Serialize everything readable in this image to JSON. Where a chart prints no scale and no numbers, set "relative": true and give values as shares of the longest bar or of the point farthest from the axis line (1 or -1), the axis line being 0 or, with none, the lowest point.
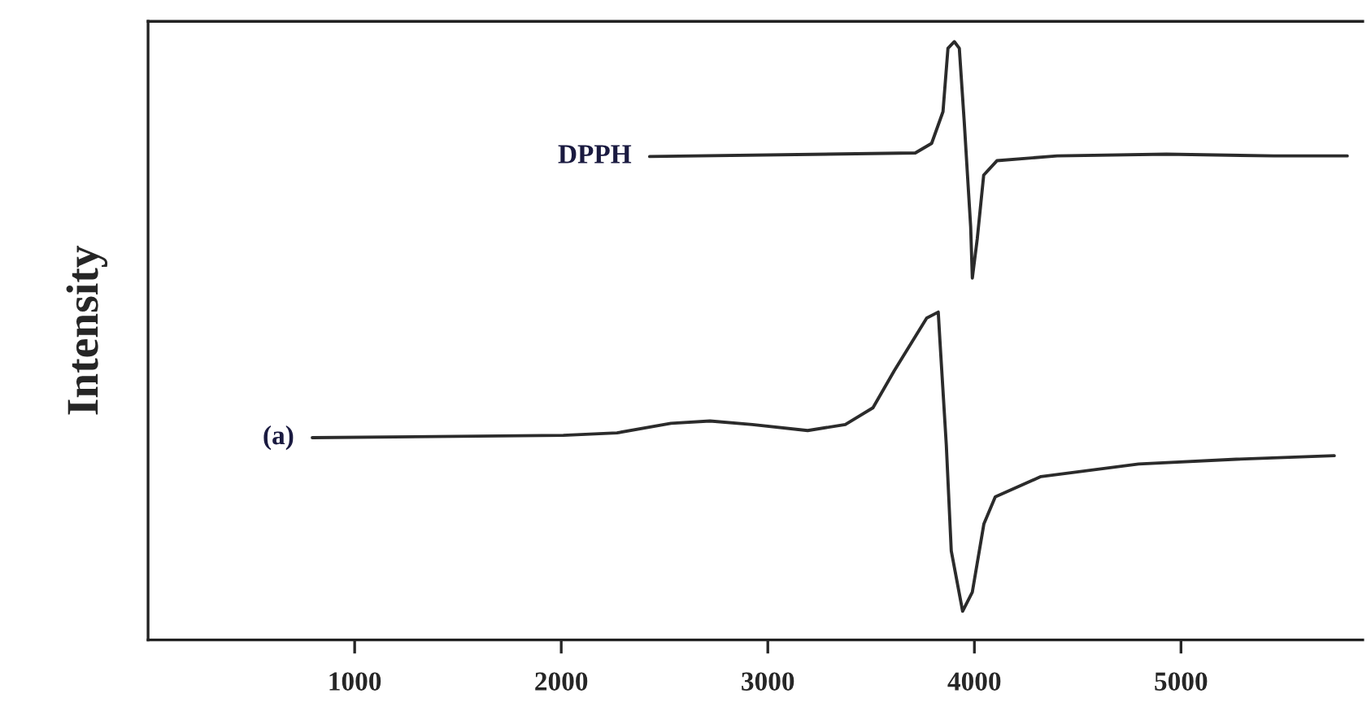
{
  "chart_data": {
    "type": "line",
    "ylabel": "Intensity",
    "relative": true,
    "xlim": [
      0,
      5880
    ],
    "xticks": [
      1000,
      2000,
      3000,
      4000,
      5000
    ],
    "grid": false,
    "legend": false,
    "tick_labels": "x",
    "series": [
      {
        "name": "DPPH",
        "color": "#2b2b2b",
        "x": [
          2428,
          3714,
          3793,
          3848,
          3872,
          3903,
          3927,
          3951,
          3982,
          3990,
          4014,
          4045,
          4109,
          4401,
          4929,
          5450,
          5805
        ],
        "values": [
          0.808,
          0.814,
          0.83,
          0.883,
          0.989,
          1.0,
          0.989,
          0.865,
          0.69,
          0.605,
          0.671,
          0.777,
          0.801,
          0.809,
          0.812,
          0.809,
          0.809
        ]
      },
      {
        "name": "(a)",
        "color": "#2b2b2b",
        "x": [
          795,
          2010,
          2270,
          2531,
          2720,
          2925,
          3193,
          3375,
          3509,
          3612,
          3769,
          3825,
          3833,
          3864,
          3888,
          3943,
          3990,
          4046,
          4101,
          4322,
          4795,
          5268,
          5742
        ],
        "values": [
          0.338,
          0.342,
          0.346,
          0.362,
          0.366,
          0.36,
          0.35,
          0.36,
          0.388,
          0.45,
          0.538,
          0.548,
          0.501,
          0.326,
          0.149,
          0.048,
          0.08,
          0.194,
          0.239,
          0.273,
          0.294,
          0.302,
          0.308
        ]
      }
    ]
  }
}
